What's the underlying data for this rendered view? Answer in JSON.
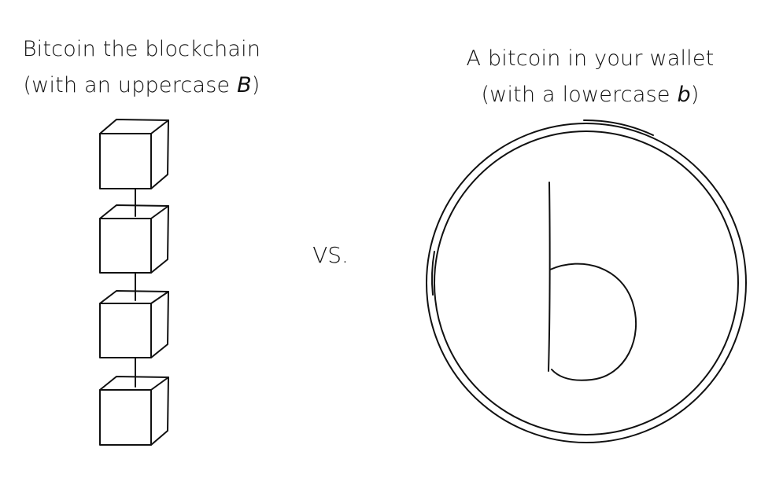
{
  "left": {
    "title_line1": "Bitcoin the blockchain",
    "title_line2_prefix": "(with an uppercase ",
    "title_line2_letter": "B",
    "title_line2_suffix": ")"
  },
  "middle": {
    "vs_label": "VS."
  },
  "right": {
    "title_line1": "A bitcoin in your wallet",
    "title_line2_prefix": "(with a lowercase ",
    "title_line2_letter": "b",
    "title_line2_suffix": ")"
  }
}
